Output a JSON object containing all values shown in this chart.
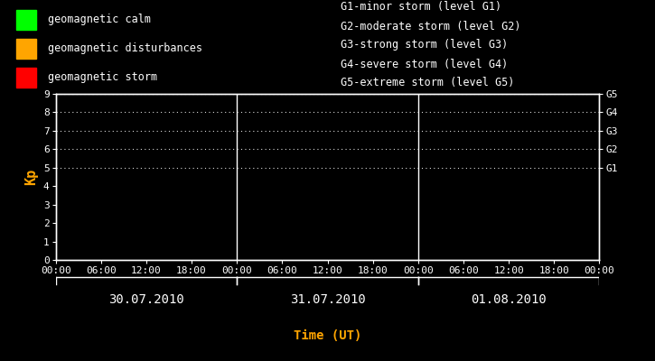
{
  "bg_color": "#000000",
  "fg_color": "#ffffff",
  "orange_color": "#ffa500",
  "title": "Time (UT)",
  "ylabel": "Kp",
  "ylim": [
    0,
    9
  ],
  "yticks": [
    0,
    1,
    2,
    3,
    4,
    5,
    6,
    7,
    8,
    9
  ],
  "days": [
    "30.07.2010",
    "31.07.2010",
    "01.08.2010"
  ],
  "legend_items": [
    {
      "label": "geomagnetic calm",
      "color": "#00ff00"
    },
    {
      "label": "geomagnetic disturbances",
      "color": "#ffa500"
    },
    {
      "label": "geomagnetic storm",
      "color": "#ff0000"
    }
  ],
  "g_labels": [
    "G1-minor storm (level G1)",
    "G2-moderate storm (level G2)",
    "G3-strong storm (level G3)",
    "G4-severe storm (level G4)",
    "G5-extreme storm (level G5)"
  ],
  "g_right_labels": [
    "G5",
    "G4",
    "G3",
    "G2",
    "G1"
  ],
  "g_right_y": [
    9,
    8,
    7,
    6,
    5
  ],
  "dotted_y": [
    5,
    6,
    7,
    8,
    9
  ],
  "num_days": 3,
  "font_size": 8,
  "font_size_date": 10,
  "font_size_ylabel": 11,
  "font_size_xlabel": 10,
  "font_size_legend": 8.5,
  "font_size_g": 8.5
}
